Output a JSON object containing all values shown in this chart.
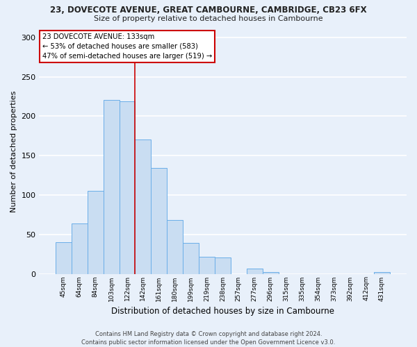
{
  "title": "23, DOVECOTE AVENUE, GREAT CAMBOURNE, CAMBRIDGE, CB23 6FX",
  "subtitle": "Size of property relative to detached houses in Cambourne",
  "xlabel": "Distribution of detached houses by size in Cambourne",
  "ylabel": "Number of detached properties",
  "bar_labels": [
    "45sqm",
    "64sqm",
    "84sqm",
    "103sqm",
    "122sqm",
    "142sqm",
    "161sqm",
    "180sqm",
    "199sqm",
    "219sqm",
    "238sqm",
    "257sqm",
    "277sqm",
    "296sqm",
    "315sqm",
    "335sqm",
    "354sqm",
    "373sqm",
    "392sqm",
    "412sqm",
    "431sqm"
  ],
  "bar_heights": [
    40,
    64,
    105,
    221,
    219,
    170,
    134,
    68,
    39,
    22,
    21,
    0,
    7,
    2,
    0,
    0,
    0,
    0,
    0,
    0,
    2
  ],
  "bar_color": "#c9ddf2",
  "bar_edge_color": "#6aaee8",
  "ylim": [
    0,
    310
  ],
  "yticks": [
    0,
    50,
    100,
    150,
    200,
    250,
    300
  ],
  "vline_index": 4.5,
  "vline_color": "#cc0000",
  "annotation_title": "23 DOVECOTE AVENUE: 133sqm",
  "annotation_line1": "← 53% of detached houses are smaller (583)",
  "annotation_line2": "47% of semi-detached houses are larger (519) →",
  "annotation_box_color": "#ffffff",
  "annotation_box_edge": "#cc0000",
  "footer1": "Contains HM Land Registry data © Crown copyright and database right 2024.",
  "footer2": "Contains public sector information licensed under the Open Government Licence v3.0.",
  "bg_color": "#e8f0fa",
  "plot_bg_color": "#e8f0fa"
}
